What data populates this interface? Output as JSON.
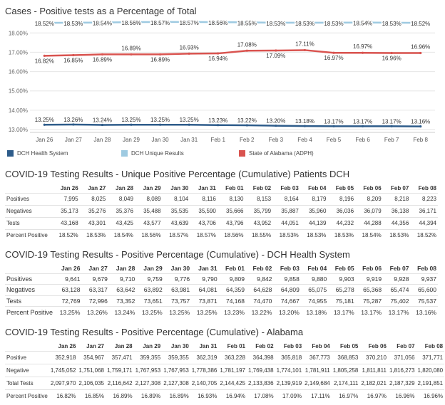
{
  "chart_title": "Cases - Positive tests as a Percentage of Total",
  "chart_data": {
    "type": "line",
    "categories": [
      "Jan 26",
      "Jan 27",
      "Jan 28",
      "Jan 29",
      "Jan 30",
      "Jan 31",
      "Feb 1",
      "Feb 2",
      "Feb 3",
      "Feb 4",
      "Feb 5",
      "Feb 6",
      "Feb 7",
      "Feb 8"
    ],
    "y_ticks": [
      "18.00%",
      "17.00%",
      "16.00%",
      "15.00%",
      "14.00%",
      "13.00%"
    ],
    "ylim": [
      13.0,
      18.6
    ],
    "series": [
      {
        "name": "DCH Health System",
        "color": "#2e5c8a",
        "values": [
          13.25,
          13.26,
          13.24,
          13.25,
          13.25,
          13.25,
          13.23,
          13.22,
          13.2,
          13.18,
          13.17,
          13.17,
          13.17,
          13.16
        ],
        "labels": [
          "13.25%",
          "13.26%",
          "13.24%",
          "13.25%",
          "13.25%",
          "13.25%",
          "13.23%",
          "13.22%",
          "13.20%",
          "13.18%",
          "13.17%",
          "13.17%",
          "13.17%",
          "13.16%"
        ]
      },
      {
        "name": "DCH Unique Results",
        "color": "#9ecae1",
        "values": [
          18.52,
          18.53,
          18.54,
          18.56,
          18.57,
          18.57,
          18.56,
          18.55,
          18.53,
          18.53,
          18.53,
          18.54,
          18.53,
          18.52
        ],
        "labels": [
          "18.52%",
          "18.53%",
          "18.54%",
          "18.56%",
          "18.57%",
          "18.57%",
          "18.56%",
          "18.55%",
          "18.53%",
          "18.53%",
          "18.53%",
          "18.54%",
          "18.53%",
          "18.52%"
        ]
      },
      {
        "name": "State of Alabama (ADPH)",
        "color": "#d9534f",
        "values": [
          16.82,
          16.85,
          16.89,
          16.89,
          16.89,
          16.93,
          16.94,
          17.08,
          17.09,
          17.11,
          16.97,
          16.97,
          16.96,
          16.96
        ],
        "labels": [
          "16.82%",
          "16.85%",
          "16.89%",
          "16.89%",
          "16.89%",
          "16.93%",
          "16.94%",
          "17.08%",
          "17.09%",
          "17.11%",
          "16.97%",
          "16.97%",
          "16.96%",
          "16.96%"
        ]
      }
    ]
  },
  "tables": [
    {
      "title": "COVID-19 Testing Results - Unique Positive Percentage (Cumulative) Patients DCH",
      "columns": [
        "Jan 26",
        "Jan 27",
        "Jan 28",
        "Jan 29",
        "Jan 30",
        "Jan 31",
        "Feb 01",
        "Feb 02",
        "Feb 03",
        "Feb 04",
        "Feb 05",
        "Feb 06",
        "Feb 07",
        "Feb 08"
      ],
      "rows": [
        {
          "label": "Positives",
          "cells": [
            "7,995",
            "8,025",
            "8,049",
            "8,089",
            "8,104",
            "8,116",
            "8,130",
            "8,153",
            "8,164",
            "8,179",
            "8,196",
            "8,209",
            "8,218",
            "8,223"
          ]
        },
        {
          "label": "Negatives",
          "cells": [
            "35,173",
            "35,276",
            "35,376",
            "35,488",
            "35,535",
            "35,590",
            "35,666",
            "35,799",
            "35,887",
            "35,960",
            "36,036",
            "36,079",
            "36,138",
            "36,171"
          ]
        },
        {
          "label": "Tests",
          "cells": [
            "43,168",
            "43,301",
            "43,425",
            "43,577",
            "43,639",
            "43,706",
            "43,796",
            "43,952",
            "44,051",
            "44,139",
            "44,232",
            "44,288",
            "44,356",
            "44,394"
          ]
        },
        {
          "label": "Percent Positive",
          "cells": [
            "18.52%",
            "18.53%",
            "18.54%",
            "18.56%",
            "18.57%",
            "18.57%",
            "18.56%",
            "18.55%",
            "18.53%",
            "18.53%",
            "18.53%",
            "18.54%",
            "18.53%",
            "18.52%"
          ]
        }
      ]
    },
    {
      "title": "COVID-19 Testing Results - Positive Percentage (Cumulative) - DCH Health System",
      "columns": [
        "Jan 26",
        "Jan 27",
        "Jan 28",
        "Jan 29",
        "Jan 30",
        "Jan 31",
        "Feb 01",
        "Feb 02",
        "Feb 03",
        "Feb 04",
        "Feb 05",
        "Feb 06",
        "Feb 07",
        "Feb 08"
      ],
      "rows": [
        {
          "label": "Positives",
          "cells": [
            "9,641",
            "9,679",
            "9,710",
            "9,759",
            "9,776",
            "9,790",
            "9,809",
            "9,842",
            "9,858",
            "9,880",
            "9,903",
            "9,919",
            "9,928",
            "9,937"
          ]
        },
        {
          "label": "Negatives",
          "cells": [
            "63,128",
            "63,317",
            "63,642",
            "63,892",
            "63,981",
            "64,081",
            "64,359",
            "64,628",
            "64,809",
            "65,075",
            "65,278",
            "65,368",
            "65,474",
            "65,600"
          ]
        },
        {
          "label": "Tests",
          "cells": [
            "72,769",
            "72,996",
            "73,352",
            "73,651",
            "73,757",
            "73,871",
            "74,168",
            "74,470",
            "74,667",
            "74,955",
            "75,181",
            "75,287",
            "75,402",
            "75,537"
          ]
        },
        {
          "label": "Percent Positive",
          "cells": [
            "13.25%",
            "13.26%",
            "13.24%",
            "13.25%",
            "13.25%",
            "13.25%",
            "13.23%",
            "13.22%",
            "13.20%",
            "13.18%",
            "13.17%",
            "13.17%",
            "13.17%",
            "13.16%"
          ]
        }
      ]
    },
    {
      "title": "COVID-19 Testing Results - Positive Percentage (Cumulative) - Alabama",
      "columns": [
        "Jan 26",
        "Jan 27",
        "Jan 28",
        "Jan 29",
        "Jan 30",
        "Jan 31",
        "Feb 01",
        "Feb 02",
        "Feb 03",
        "Feb 04",
        "Feb 05",
        "Feb 06",
        "Feb 07",
        "Feb 08"
      ],
      "rows": [
        {
          "label": "Positive",
          "cells": [
            "352,918",
            "354,967",
            "357,471",
            "359,355",
            "359,355",
            "362,319",
            "363,228",
            "364,398",
            "365,818",
            "367,773",
            "368,853",
            "370,210",
            "371,056",
            "371,771"
          ]
        },
        {
          "label": "Negative",
          "cells": [
            "1,745,052",
            "1,751,068",
            "1,759,171",
            "1,767,953",
            "1,767,953",
            "1,778,386",
            "1,781,197",
            "1,769,438",
            "1,774,101",
            "1,781,911",
            "1,805,258",
            "1,811,811",
            "1,816,273",
            "1,820,080"
          ]
        },
        {
          "label": "Total Tests",
          "cells": [
            "2,097,970",
            "2,106,035",
            "2,116,642",
            "2,127,308",
            "2,127,308",
            "2,140,705",
            "2,144,425",
            "2,133,836",
            "2,139,919",
            "2,149,684",
            "2,174,111",
            "2,182,021",
            "2,187,329",
            "2,191,851"
          ]
        },
        {
          "label": "Percent Positive",
          "cells": [
            "16.82%",
            "16.85%",
            "16.89%",
            "16.89%",
            "16.89%",
            "16.93%",
            "16.94%",
            "17.08%",
            "17.09%",
            "17.11%",
            "16.97%",
            "16.97%",
            "16.96%",
            "16.96%"
          ]
        }
      ]
    }
  ]
}
